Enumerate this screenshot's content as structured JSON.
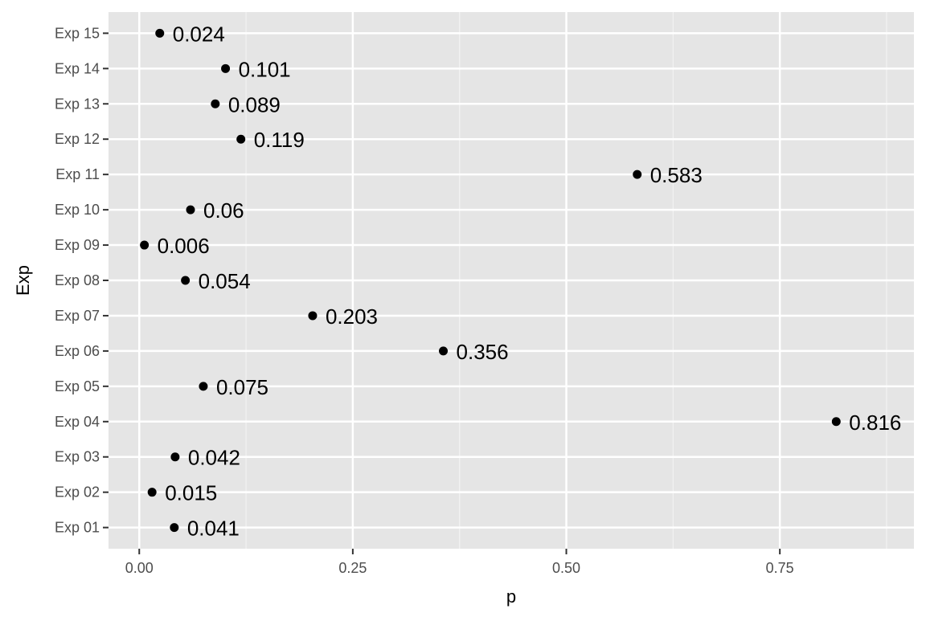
{
  "chart_data": {
    "type": "scatter",
    "title": "",
    "xlabel": "p",
    "ylabel": "Exp",
    "xlim": [
      -0.036,
      0.907
    ],
    "x_ticks": [
      "0.00",
      "0.25",
      "0.50",
      "0.75"
    ],
    "x_tick_values": [
      0,
      0.25,
      0.5,
      0.75
    ],
    "grid": true,
    "legend": "none",
    "categories": [
      "Exp 01",
      "Exp 02",
      "Exp 03",
      "Exp 04",
      "Exp 05",
      "Exp 06",
      "Exp 07",
      "Exp 08",
      "Exp 09",
      "Exp 10",
      "Exp 11",
      "Exp 12",
      "Exp 13",
      "Exp 14",
      "Exp 15"
    ],
    "values": [
      0.041,
      0.015,
      0.042,
      0.816,
      0.075,
      0.356,
      0.203,
      0.054,
      0.006,
      0.06,
      0.583,
      0.119,
      0.089,
      0.101,
      0.024
    ],
    "labels": [
      "0.041",
      "0.015",
      "0.042",
      "0.816",
      "0.075",
      "0.356",
      "0.203",
      "0.054",
      "0.006",
      "0.06",
      "0.583",
      "0.119",
      "0.089",
      "0.101",
      "0.024"
    ],
    "colors": {
      "panel": "#e5e5e5",
      "grid": "#ffffff",
      "point": "#000000"
    }
  }
}
